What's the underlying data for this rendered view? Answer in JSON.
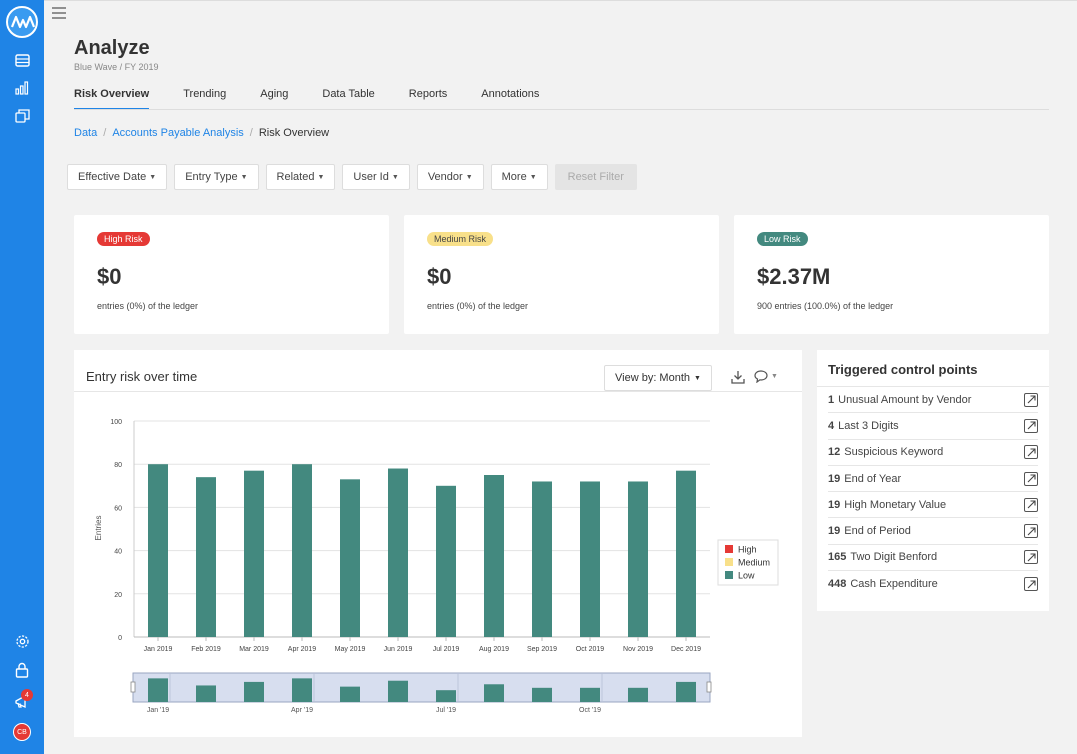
{
  "header": {
    "title": "Analyze",
    "subtitle": "Blue Wave / FY 2019"
  },
  "tabs": [
    {
      "label": "Risk Overview",
      "active": true
    },
    {
      "label": "Trending"
    },
    {
      "label": "Aging"
    },
    {
      "label": "Data Table"
    },
    {
      "label": "Reports"
    },
    {
      "label": "Annotations"
    }
  ],
  "breadcrumb": {
    "items": [
      "Data",
      "Accounts Payable Analysis"
    ],
    "current": "Risk Overview"
  },
  "filters": {
    "effective_date": "Effective Date",
    "entry_type": "Entry Type",
    "related": "Related",
    "user_id": "User Id",
    "vendor": "Vendor",
    "more": "More",
    "reset": "Reset Filter"
  },
  "risk_cards": {
    "high": {
      "label": "High Risk",
      "amount": "$0",
      "detail": "entries (0%) of the ledger",
      "color": "#e53935"
    },
    "medium": {
      "label": "Medium Risk",
      "amount": "$0",
      "detail": "entries (0%) of the ledger",
      "color": "#f8e08a"
    },
    "low": {
      "label": "Low Risk",
      "amount": "$2.37M",
      "detail": "900 entries (100.0%) of the ledger",
      "color": "#43897f"
    }
  },
  "chart_panel": {
    "title": "Entry risk over time",
    "view_by": "View by: Month"
  },
  "chart_data": {
    "type": "bar",
    "categories": [
      "Jan 2019",
      "Feb 2019",
      "Mar 2019",
      "Apr 2019",
      "May 2019",
      "Jun 2019",
      "Jul 2019",
      "Aug 2019",
      "Sep 2019",
      "Oct 2019",
      "Nov 2019",
      "Dec 2019"
    ],
    "series": [
      {
        "name": "Low",
        "values": [
          80,
          74,
          77,
          80,
          73,
          78,
          70,
          75,
          72,
          72,
          72,
          77
        ],
        "color": "#43897f"
      }
    ],
    "legend": [
      {
        "name": "High",
        "color": "#e53935"
      },
      {
        "name": "Medium",
        "color": "#f8e08a"
      },
      {
        "name": "Low",
        "color": "#43897f"
      }
    ],
    "ylabel": "Entries",
    "ylim": [
      0,
      100
    ],
    "yticks": [
      0,
      20,
      40,
      60,
      80,
      100
    ],
    "grid": true,
    "legend_position": "right",
    "navigator_labels": [
      "Jan '19",
      "Apr '19",
      "Jul '19",
      "Oct '19"
    ]
  },
  "control_points": {
    "title": "Triggered control points",
    "items": [
      {
        "count": "1",
        "label": "Unusual Amount by Vendor"
      },
      {
        "count": "4",
        "label": "Last 3 Digits"
      },
      {
        "count": "12",
        "label": "Suspicious Keyword"
      },
      {
        "count": "19",
        "label": "End of Year"
      },
      {
        "count": "19",
        "label": "High Monetary Value"
      },
      {
        "count": "19",
        "label": "End of Period"
      },
      {
        "count": "165",
        "label": "Two Digit Benford"
      },
      {
        "count": "448",
        "label": "Cash Expenditure"
      }
    ]
  },
  "sidebar": {
    "notification_count": "4",
    "user_initials": "CB",
    "accent": "#1f84e6"
  }
}
